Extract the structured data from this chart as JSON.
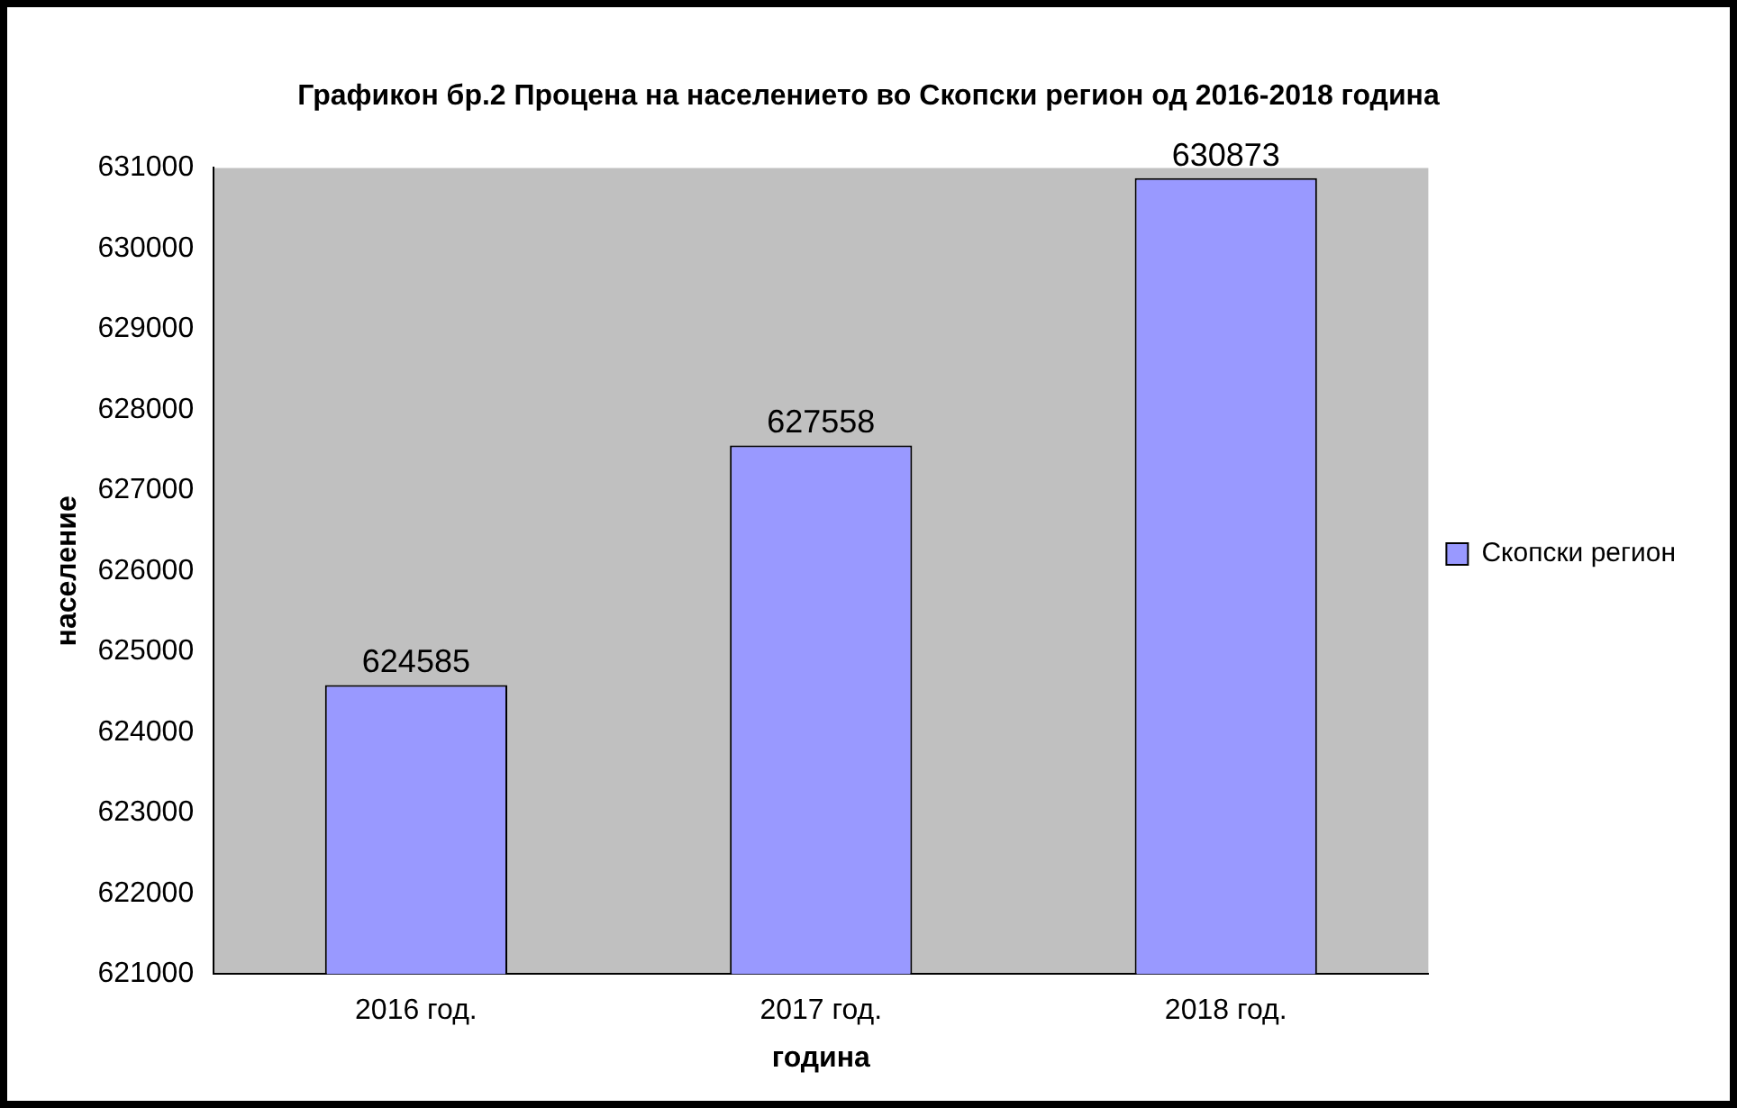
{
  "chart_data": {
    "type": "bar",
    "title": "Графикон бр.2 Процена на населението во Скопски регион од 2016-2018 година",
    "xlabel": "година",
    "ylabel": "население",
    "categories": [
      "2016 год.",
      "2017 год.",
      "2018 год."
    ],
    "series": [
      {
        "name": "Скопски регион",
        "color": "#9999ff",
        "values": [
          624585,
          627558,
          630873
        ]
      }
    ],
    "ylim": [
      621000,
      631000
    ],
    "yticks": [
      621000,
      622000,
      623000,
      624000,
      625000,
      626000,
      627000,
      628000,
      629000,
      630000,
      631000
    ],
    "grid": false,
    "legend": "right",
    "data_labels": true
  }
}
